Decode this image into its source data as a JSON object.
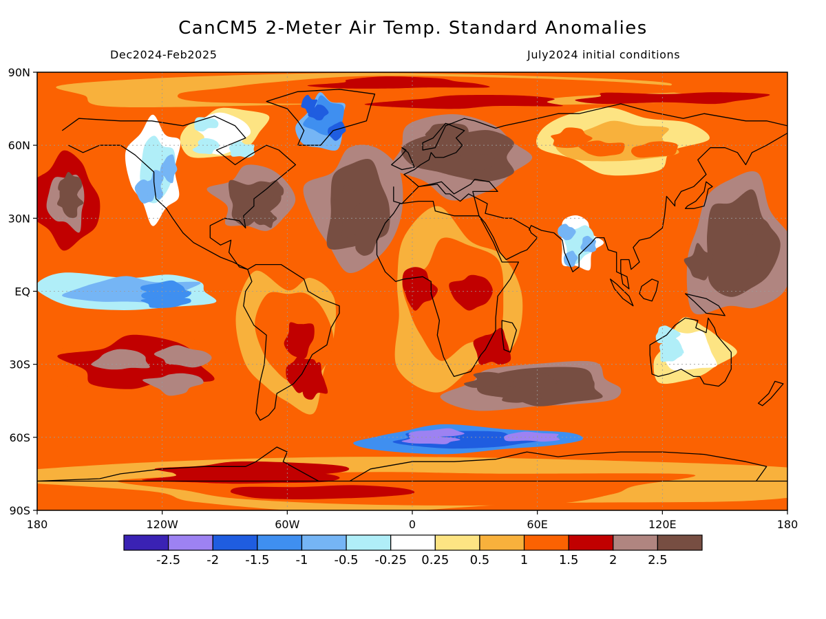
{
  "header": {
    "title": "CanCM5 2-Meter Air Temp. Standard Anomalies",
    "period": "Dec2024-Feb2025",
    "initial": "July2024 initial conditions"
  },
  "axes": {
    "lat_labels": [
      "90N",
      "60N",
      "30N",
      "EQ",
      "30S",
      "60S",
      "90S"
    ],
    "lat_values": [
      90,
      60,
      30,
      0,
      -30,
      -60,
      -90
    ],
    "lon_labels": [
      "180",
      "120W",
      "60W",
      "0",
      "60E",
      "120E",
      "180"
    ],
    "lon_values": [
      -180,
      -120,
      -60,
      0,
      60,
      120,
      180
    ]
  },
  "legend": {
    "colors": [
      "#3a22b4",
      "#9d82f2",
      "#1f5de0",
      "#3f8ff0",
      "#75b5f5",
      "#b0eef8",
      "#ffffff",
      "#fde483",
      "#f8b13c",
      "#fb6202",
      "#c10000",
      "#b08580",
      "#774e42"
    ],
    "labels": [
      "-2.5",
      "-2",
      "-1.5",
      "-1",
      "-0.5",
      "-0.25",
      "0.25",
      "0.5",
      "1",
      "1.5",
      "2",
      "2.5"
    ]
  },
  "map_regions": [
    {
      "name": "arctic-ocean-band",
      "class": 9,
      "lon": [
        -180,
        180
      ],
      "lat": [
        75,
        90
      ]
    },
    {
      "name": "north-pacific",
      "class": 11,
      "lon": [
        -180,
        -150
      ],
      "lat": [
        20,
        55
      ]
    },
    {
      "name": "western-north-america",
      "class": 5,
      "lon": [
        -135,
        -110
      ],
      "lat": [
        30,
        70
      ]
    },
    {
      "name": "canadian-arctic",
      "class": 6,
      "lon": [
        -110,
        -70
      ],
      "lat": [
        55,
        75
      ]
    },
    {
      "name": "greenland",
      "class": 3,
      "lon": [
        -55,
        -30
      ],
      "lat": [
        60,
        82
      ]
    },
    {
      "name": "north-atlantic",
      "class": 12,
      "lon": [
        -50,
        -5
      ],
      "lat": [
        10,
        60
      ]
    },
    {
      "name": "eastern-us",
      "class": 12,
      "lon": [
        -95,
        -60
      ],
      "lat": [
        25,
        50
      ]
    },
    {
      "name": "equatorial-pacific",
      "class": 4,
      "lon": [
        -175,
        -90
      ],
      "lat": [
        -8,
        8
      ]
    },
    {
      "name": "south-pacific",
      "class": 10,
      "lon": [
        -180,
        -80
      ],
      "lat": [
        -45,
        -15
      ]
    },
    {
      "name": "south-america",
      "class": 9,
      "lon": [
        -80,
        -35
      ],
      "lat": [
        -50,
        10
      ]
    },
    {
      "name": "africa",
      "class": 9,
      "lon": [
        -15,
        50
      ],
      "lat": [
        -35,
        30
      ]
    },
    {
      "name": "europe-russia",
      "class": 12,
      "lon": [
        -10,
        60
      ],
      "lat": [
        40,
        70
      ]
    },
    {
      "name": "siberia",
      "class": 8,
      "lon": [
        60,
        140
      ],
      "lat": [
        50,
        75
      ]
    },
    {
      "name": "india",
      "class": 5,
      "lon": [
        70,
        90
      ],
      "lat": [
        10,
        30
      ]
    },
    {
      "name": "west-pacific",
      "class": 12,
      "lon": [
        130,
        180
      ],
      "lat": [
        -10,
        50
      ]
    },
    {
      "name": "australia",
      "class": 6,
      "lon": [
        115,
        152
      ],
      "lat": [
        -38,
        -12
      ]
    },
    {
      "name": "south-indian-ocean",
      "class": 12,
      "lon": [
        20,
        110
      ],
      "lat": [
        -50,
        -30
      ]
    },
    {
      "name": "southern-ocean-cold",
      "class": 2,
      "lon": [
        -30,
        80
      ],
      "lat": [
        -66,
        -56
      ]
    },
    {
      "name": "antarctica",
      "class": 9,
      "lon": [
        -180,
        180
      ],
      "lat": [
        -90,
        -70
      ]
    }
  ]
}
